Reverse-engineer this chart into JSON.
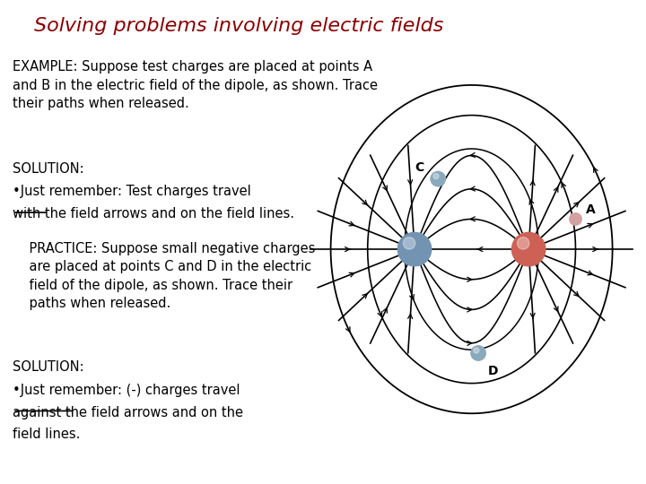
{
  "title": "Solving problems involving electric fields",
  "title_color": "#8B0000",
  "title_fontsize": 16,
  "background_color": "#ffffff",
  "example_text": "EXAMPLE: Suppose test charges are placed at points A\nand B in the electric field of the dipole, as shown. Trace\ntheir paths when released.",
  "solution1_label": "SOLUTION:",
  "bullet1_line1": "•Just remember: Test charges travel",
  "bullet1_line2": "with the field arrows and on the field lines.",
  "with_underline": true,
  "practice_text": "    PRACTICE: Suppose small negative charges\n    are placed at points C and D in the electric\n    field of the dipole, as shown. Trace their\n    paths when released.",
  "solution2_label": "SOLUTION:",
  "bullet2_line1": "•Just remember: (-) charges travel",
  "bullet2_line2": "against the field arrows and on the",
  "bullet2_line3": "field lines.",
  "against_underline": true,
  "neg_charge_color": "#7393B3",
  "pos_charge_color": "#CD6155",
  "neg_charge_small_color": "#8aaabb",
  "pos_charge_small_color": "#D4A0A0",
  "text_fontsize": 10.5
}
